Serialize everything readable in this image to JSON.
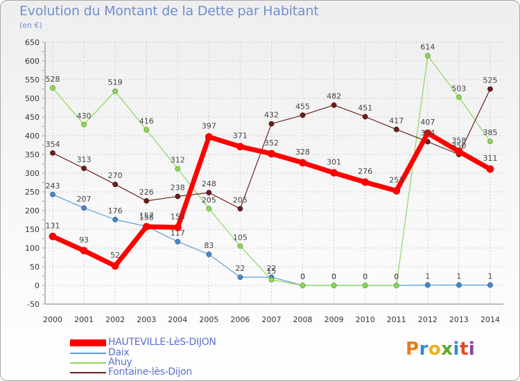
{
  "title": "Evolution du Montant de la Dette par Habitant",
  "subtitle": "(en €)",
  "logo": {
    "text": "Proxiti",
    "colors": [
      "#e87d1e",
      "#2d8fd0",
      "#f2b01e",
      "#5aaa2c",
      "#2d8fd0",
      "#e04a2a",
      "#8a3ea0"
    ]
  },
  "chart_data": {
    "type": "line",
    "title": "Evolution du Montant de la Dette par Habitant",
    "subtitle": "(en €)",
    "x": [
      "2000",
      "2001",
      "2002",
      "2003",
      "2004",
      "2005",
      "2006",
      "2007",
      "2008",
      "2009",
      "2010",
      "2011",
      "2012",
      "2013",
      "2014"
    ],
    "ylim": [
      -50,
      650
    ],
    "yticks": [
      "-50",
      "0",
      "50",
      "100",
      "150",
      "200",
      "250",
      "300",
      "350",
      "400",
      "450",
      "500",
      "550",
      "600",
      "650"
    ],
    "grid": "horizontal dashed",
    "legend_position": "bottom-left",
    "series": [
      {
        "name": "HAUTEVILLE-LèS-DIJON",
        "color": "#ff0000",
        "values": [
          131,
          93,
          52,
          157,
          155,
          397,
          371,
          352,
          328,
          301,
          276,
          253,
          407,
          358,
          311
        ]
      },
      {
        "name": "Daix",
        "color": "#5b9bd5",
        "values": [
          243,
          207,
          176,
          158,
          117,
          83,
          22,
          22,
          0,
          0,
          0,
          0,
          1,
          1,
          1
        ]
      },
      {
        "name": "Ahuy",
        "color": "#8fd65a",
        "values": [
          528,
          430,
          519,
          416,
          312,
          205,
          105,
          15,
          0,
          0,
          0,
          0,
          614,
          503,
          385
        ]
      },
      {
        "name": "Fontaine-lès-Dijon",
        "color": "#6b1e1e",
        "values": [
          354,
          313,
          270,
          226,
          238,
          248,
          205,
          432,
          455,
          482,
          451,
          417,
          384,
          350,
          525
        ]
      }
    ],
    "data_labels": {
      "HAUTEVILLE-LèS-DIJON": [
        "131",
        "93",
        "52",
        "157",
        "155",
        "397",
        "371",
        "352",
        "328",
        "301",
        "276",
        "253",
        "407",
        "358",
        "311"
      ],
      "Daix": [
        "243",
        "207",
        "176",
        "158",
        "117",
        "83",
        "22",
        "22",
        "0",
        "0",
        "0",
        "0",
        "1",
        "1",
        "1"
      ],
      "Ahuy": [
        "528",
        "430",
        "519",
        "416",
        "312",
        "205",
        "105",
        "15",
        "0",
        "0",
        "0",
        "0",
        "614",
        "503",
        "385"
      ],
      "Fontaine-lès-Dijon": [
        "354",
        "313",
        "270",
        "226",
        "238",
        "248",
        "205",
        "432",
        "455",
        "482",
        "451",
        "417",
        "384",
        "350",
        "525"
      ]
    }
  }
}
